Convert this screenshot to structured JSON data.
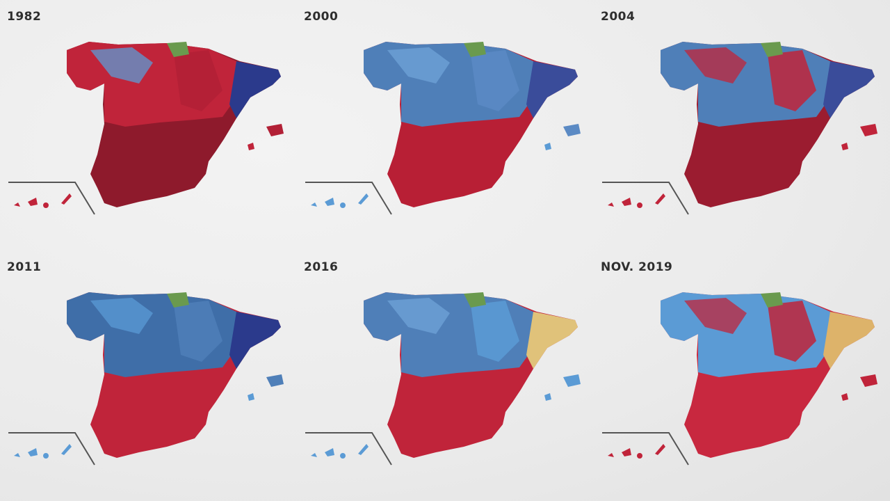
{
  "panels": [
    {
      "year": "1982",
      "north": "#c0243a",
      "northAlt": "#5b9bd5",
      "south": "#8e1a2c",
      "east": "#2b3a8c",
      "northEast": "#b22036",
      "canary": "#c0243a"
    },
    {
      "year": "2000",
      "north": "#4f7fb8",
      "northAlt": "#6fa3d8",
      "south": "#b81f35",
      "east": "#3a4c9a",
      "northEast": "#5b8ac4",
      "canary": "#5b9bd5"
    },
    {
      "year": "2004",
      "north": "#4f7fb8",
      "northAlt": "#c0243a",
      "south": "#9b1c30",
      "east": "#3a4c9a",
      "northEast": "#c0243a",
      "canary": "#c0243a"
    },
    {
      "year": "2011",
      "north": "#3f6ea8",
      "northAlt": "#5b9bd5",
      "south": "#c0243a",
      "east": "#2b3a8c",
      "northEast": "#4f7fb8",
      "canary": "#5b9bd5"
    },
    {
      "year": "2016",
      "north": "#4f7fb8",
      "northAlt": "#6fa3d8",
      "south": "#c0243a",
      "east": "#e0c27a",
      "northEast": "#5b9bd5",
      "canary": "#5b9bd5"
    },
    {
      "year": "NOV. 2019",
      "north": "#5b9bd5",
      "northAlt": "#c0243a",
      "south": "#c8283f",
      "east": "#ddb36a",
      "northEast": "#c0243a",
      "canary": "#c0243a"
    }
  ]
}
